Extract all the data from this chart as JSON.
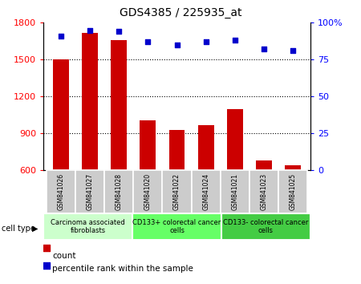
{
  "title": "GDS4385 / 225935_at",
  "samples": [
    "GSM841026",
    "GSM841027",
    "GSM841028",
    "GSM841020",
    "GSM841022",
    "GSM841024",
    "GSM841021",
    "GSM841023",
    "GSM841025"
  ],
  "counts": [
    1500,
    1720,
    1660,
    1010,
    930,
    970,
    1100,
    680,
    640
  ],
  "percentile_ranks": [
    91,
    95,
    94,
    87,
    85,
    87,
    88,
    82,
    81
  ],
  "ylim_left": [
    600,
    1800
  ],
  "ylim_right": [
    0,
    100
  ],
  "yticks_left": [
    600,
    900,
    1200,
    1500,
    1800
  ],
  "yticks_right": [
    0,
    25,
    50,
    75,
    100
  ],
  "groups": [
    {
      "label": "Carcinoma associated\nfibroblasts",
      "start": 0,
      "end": 3,
      "color": "#ccffcc"
    },
    {
      "label": "CD133+ colorectal cancer\ncells",
      "start": 3,
      "end": 6,
      "color": "#66ff66"
    },
    {
      "label": "CD133- colorectal cancer\ncells",
      "start": 6,
      "end": 9,
      "color": "#44cc44"
    }
  ],
  "bar_color": "#cc0000",
  "dot_color": "#0000cc",
  "tick_area_color": "#cccccc",
  "cell_type_label": "cell type",
  "legend_count_label": "count",
  "legend_pct_label": "percentile rank within the sample"
}
